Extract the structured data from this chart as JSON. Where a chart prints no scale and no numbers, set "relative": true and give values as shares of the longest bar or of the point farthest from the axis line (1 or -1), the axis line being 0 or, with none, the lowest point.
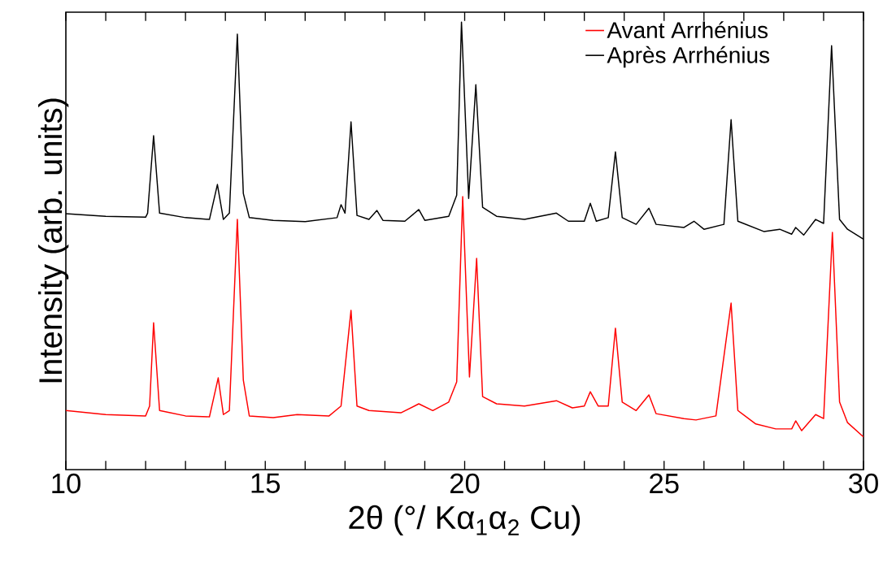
{
  "chart_data": {
    "type": "line",
    "relative": true,
    "xlabel": "2θ (°/ Kα$_{1}$α$_{2}$ Cu)",
    "ylabel": "Intensity (arb. units)",
    "xlim": [
      10,
      30
    ],
    "xticks": [
      10,
      {
        "value": 11,
        "label": null
      },
      {
        "value": 12,
        "label": null
      },
      {
        "value": 13,
        "label": null
      },
      {
        "value": 14,
        "label": null
      },
      15,
      {
        "value": 16,
        "label": null
      },
      {
        "value": 17,
        "label": null
      },
      {
        "value": 18,
        "label": null
      },
      {
        "value": 19,
        "label": null
      },
      20,
      {
        "value": 21,
        "label": null
      },
      {
        "value": 22,
        "label": null
      },
      {
        "value": 23,
        "label": null
      },
      {
        "value": 24,
        "label": null
      },
      25,
      {
        "value": 26,
        "label": null
      },
      {
        "value": 27,
        "label": null
      },
      {
        "value": 28,
        "label": null
      },
      {
        "value": 29,
        "label": null
      },
      30
    ],
    "legend": "top right",
    "grid": false,
    "series": [
      {
        "name": "Avant Arrhénius",
        "color": "#ff0000",
        "x": [
          10,
          11,
          12,
          12.1,
          12.2,
          12.35,
          13,
          13.6,
          13.82,
          13.95,
          14.1,
          14.3,
          14.45,
          14.6,
          15.2,
          15.8,
          16.6,
          16.9,
          17.15,
          17.3,
          17.6,
          18.4,
          18.85,
          19.2,
          19.6,
          19.8,
          19.95,
          20.12,
          20.3,
          20.45,
          20.8,
          21.5,
          22.3,
          22.7,
          23.0,
          23.15,
          23.35,
          23.6,
          23.78,
          23.95,
          24.3,
          24.62,
          24.8,
          25.5,
          25.8,
          26.3,
          26.68,
          26.85,
          27.3,
          27.8,
          28.2,
          28.3,
          28.45,
          28.8,
          29.0,
          29.22,
          29.4,
          29.6,
          30
        ],
        "values": [
          0.132,
          0.123,
          0.12,
          0.142,
          0.328,
          0.132,
          0.12,
          0.118,
          0.205,
          0.123,
          0.132,
          0.559,
          0.2,
          0.12,
          0.116,
          0.123,
          0.12,
          0.142,
          0.356,
          0.142,
          0.132,
          0.127,
          0.147,
          0.132,
          0.151,
          0.196,
          0.61,
          0.207,
          0.472,
          0.163,
          0.147,
          0.142,
          0.154,
          0.138,
          0.142,
          0.174,
          0.142,
          0.142,
          0.316,
          0.151,
          0.132,
          0.167,
          0.125,
          0.114,
          0.111,
          0.12,
          0.372,
          0.132,
          0.102,
          0.091,
          0.091,
          0.109,
          0.087,
          0.123,
          0.114,
          0.53,
          0.151,
          0.105,
          0.073
        ]
      },
      {
        "name": "Après Arrhénius",
        "color": "#000000",
        "x": [
          10,
          11,
          12,
          12.05,
          12.2,
          12.35,
          13,
          13.6,
          13.8,
          13.95,
          14.1,
          14.3,
          14.45,
          14.6,
          15.2,
          16,
          16.8,
          16.9,
          17.0,
          17.15,
          17.3,
          17.6,
          17.8,
          17.95,
          18.5,
          18.85,
          19.0,
          19.6,
          19.8,
          19.92,
          20.1,
          20.28,
          20.45,
          20.8,
          21.5,
          22.3,
          22.6,
          23.0,
          23.15,
          23.3,
          23.6,
          23.78,
          23.95,
          24.3,
          24.62,
          24.8,
          25.5,
          25.75,
          26.0,
          26.5,
          26.68,
          26.85,
          27.5,
          27.9,
          28.2,
          28.3,
          28.5,
          28.8,
          29.0,
          29.2,
          29.4,
          29.6,
          30
        ],
        "values": [
          0.572,
          0.566,
          0.564,
          0.573,
          0.746,
          0.573,
          0.563,
          0.559,
          0.637,
          0.559,
          0.573,
          0.973,
          0.617,
          0.563,
          0.557,
          0.554,
          0.563,
          0.592,
          0.573,
          0.777,
          0.568,
          0.559,
          0.579,
          0.557,
          0.555,
          0.581,
          0.557,
          0.566,
          0.613,
          1.0,
          0.606,
          0.86,
          0.586,
          0.566,
          0.559,
          0.573,
          0.555,
          0.555,
          0.595,
          0.555,
          0.563,
          0.71,
          0.563,
          0.548,
          0.584,
          0.548,
          0.541,
          0.555,
          0.537,
          0.548,
          0.782,
          0.555,
          0.532,
          0.537,
          0.526,
          0.541,
          0.524,
          0.559,
          0.55,
          0.947,
          0.559,
          0.537,
          0.515
        ]
      }
    ]
  }
}
